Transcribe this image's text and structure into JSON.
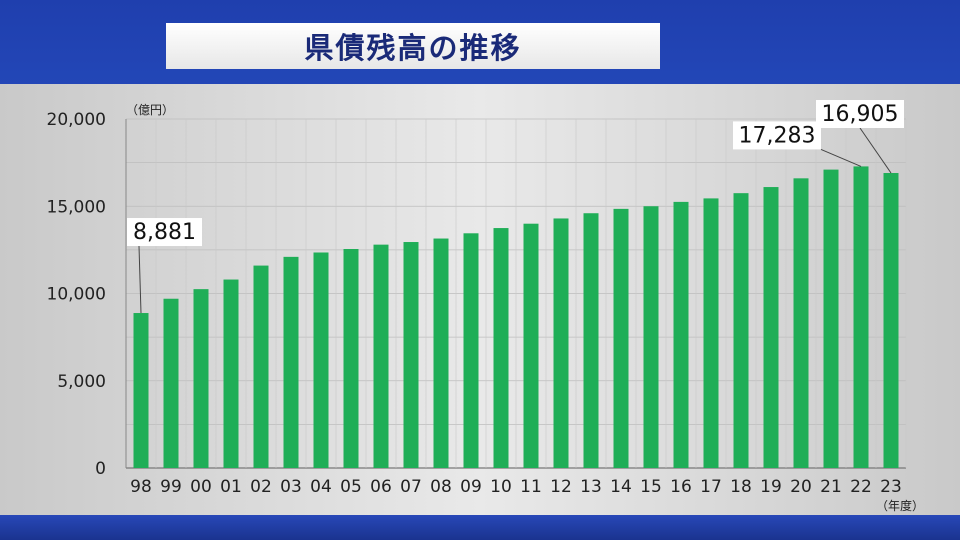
{
  "title": "県債残高の推移",
  "chart_data": {
    "type": "bar",
    "ylabel": "（億円）",
    "xlabel": "（年度）",
    "ylim": [
      0,
      20000
    ],
    "yticks": [
      "0",
      "5,000",
      "10,000",
      "15,000",
      "20,000"
    ],
    "categories": [
      "98",
      "99",
      "00",
      "01",
      "02",
      "03",
      "04",
      "05",
      "06",
      "07",
      "08",
      "09",
      "10",
      "11",
      "12",
      "13",
      "14",
      "15",
      "16",
      "17",
      "18",
      "19",
      "20",
      "21",
      "22",
      "23"
    ],
    "values": [
      8881,
      9700,
      10250,
      10800,
      11600,
      12100,
      12350,
      12550,
      12800,
      12950,
      13150,
      13450,
      13750,
      14000,
      14300,
      14600,
      14850,
      15000,
      15250,
      15450,
      15750,
      16100,
      16600,
      17100,
      17283,
      16905
    ],
    "annotations": [
      {
        "index": 0,
        "label": "8,881"
      },
      {
        "index": 24,
        "label": "17,283"
      },
      {
        "index": 25,
        "label": "16,905"
      }
    ],
    "bar_color": "#1fae57",
    "grid": true
  }
}
